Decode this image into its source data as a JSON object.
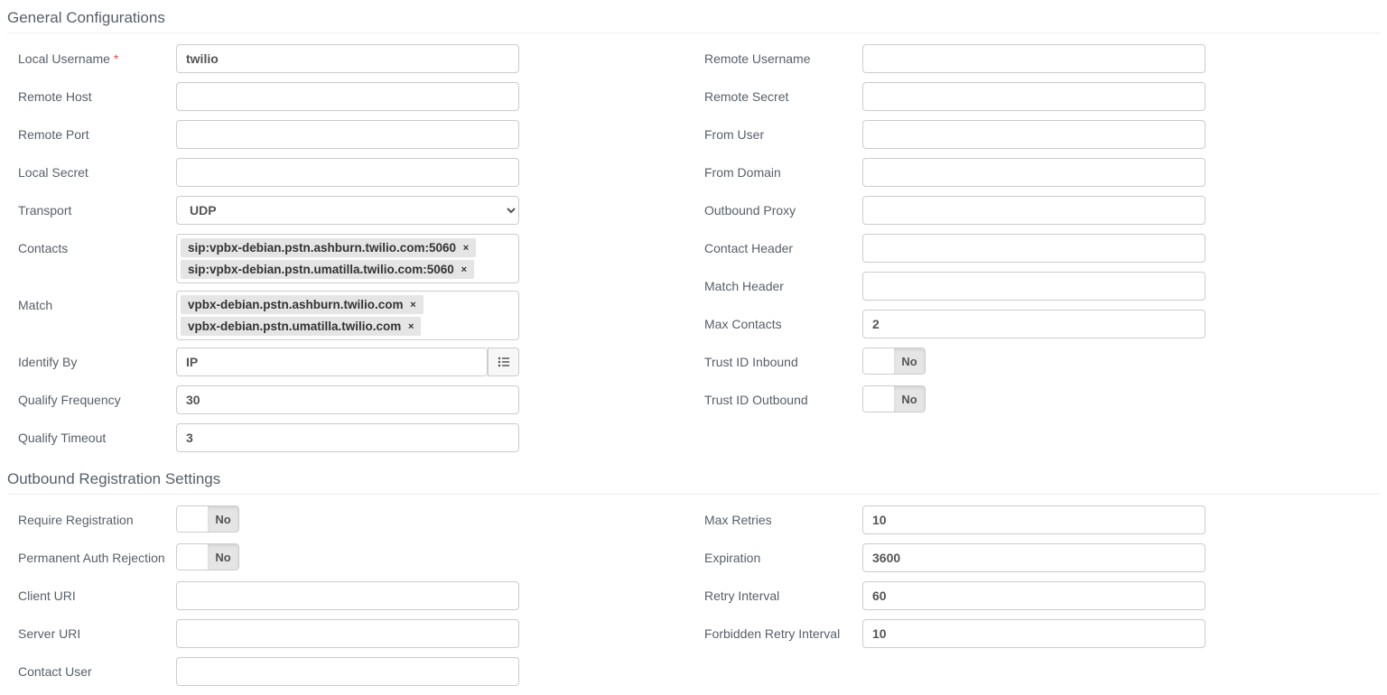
{
  "sections": {
    "general": {
      "title": "General Configurations"
    },
    "outbound": {
      "title": "Outbound Registration Settings"
    }
  },
  "labels": {
    "local_username": "Local Username",
    "remote_host": "Remote Host",
    "remote_port": "Remote Port",
    "local_secret": "Local Secret",
    "transport": "Transport",
    "contacts": "Contacts",
    "match": "Match",
    "identify_by": "Identify By",
    "qualify_frequency": "Qualify Frequency",
    "qualify_timeout": "Qualify Timeout",
    "remote_username": "Remote Username",
    "remote_secret": "Remote Secret",
    "from_user": "From User",
    "from_domain": "From Domain",
    "outbound_proxy": "Outbound Proxy",
    "contact_header": "Contact Header",
    "match_header": "Match Header",
    "max_contacts": "Max Contacts",
    "trust_id_inbound": "Trust ID Inbound",
    "trust_id_outbound": "Trust ID Outbound",
    "require_registration": "Require Registration",
    "permanent_auth_rejection": "Permanent Auth Rejection",
    "client_uri": "Client URI",
    "server_uri": "Server URI",
    "contact_user": "Contact User",
    "max_retries": "Max Retries",
    "expiration": "Expiration",
    "retry_interval": "Retry Interval",
    "forbidden_retry_interval": "Forbidden Retry Interval"
  },
  "values": {
    "local_username": "twilio",
    "remote_host": "",
    "remote_port": "",
    "local_secret": "",
    "transport": "UDP",
    "identify_by": "IP",
    "qualify_frequency": "30",
    "qualify_timeout": "3",
    "remote_username": "",
    "remote_secret": "",
    "from_user": "",
    "from_domain": "",
    "outbound_proxy": "",
    "contact_header": "",
    "match_header": "",
    "max_contacts": "2",
    "max_retries": "10",
    "expiration": "3600",
    "retry_interval": "60",
    "forbidden_retry_interval": "10",
    "client_uri": "",
    "server_uri": "",
    "contact_user": ""
  },
  "tags": {
    "contacts": [
      "sip:vpbx-debian.pstn.ashburn.twilio.com:5060",
      "sip:vpbx-debian.pstn.umatilla.twilio.com:5060"
    ],
    "match": [
      "vpbx-debian.pstn.ashburn.twilio.com",
      "vpbx-debian.pstn.umatilla.twilio.com"
    ]
  },
  "toggle_text": {
    "no": "No"
  },
  "colors": {
    "border": "#cccccc",
    "label": "#585f69",
    "tag_bg": "#e5e5e5",
    "required": "#d9534f"
  }
}
